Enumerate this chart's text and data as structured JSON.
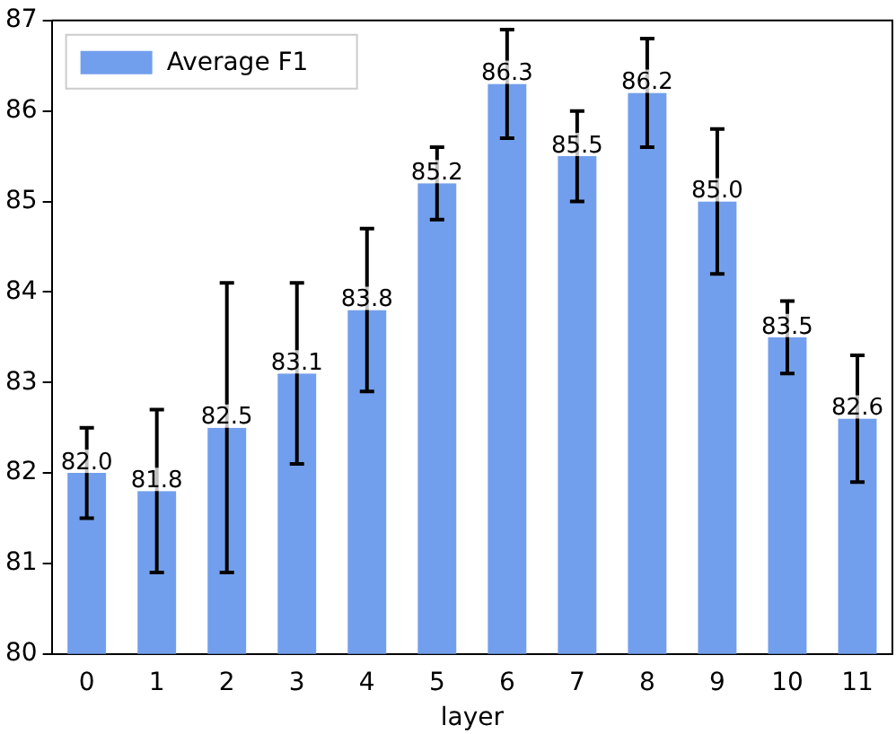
{
  "chart_data": {
    "type": "bar",
    "xlabel": "layer",
    "categories": [
      "0",
      "1",
      "2",
      "3",
      "4",
      "5",
      "6",
      "7",
      "8",
      "9",
      "10",
      "11"
    ],
    "series": [
      {
        "name": "Average F1",
        "color": "#729fed",
        "values": [
          82.0,
          81.8,
          82.5,
          83.1,
          83.8,
          85.2,
          86.3,
          85.5,
          86.2,
          85.0,
          83.5,
          82.6
        ],
        "errors": [
          0.5,
          0.9,
          1.6,
          1.0,
          0.9,
          0.4,
          0.6,
          0.5,
          0.6,
          0.8,
          0.4,
          0.7
        ],
        "value_labels": [
          "82.0",
          "81.8",
          "82.5",
          "83.1",
          "83.8",
          "85.2",
          "86.3",
          "85.5",
          "86.2",
          "85.0",
          "83.5",
          "82.6"
        ]
      }
    ],
    "ylim": [
      80,
      87
    ],
    "yticks": [
      80,
      81,
      82,
      83,
      84,
      85,
      86,
      87
    ],
    "legend": "top left",
    "grid": false
  }
}
